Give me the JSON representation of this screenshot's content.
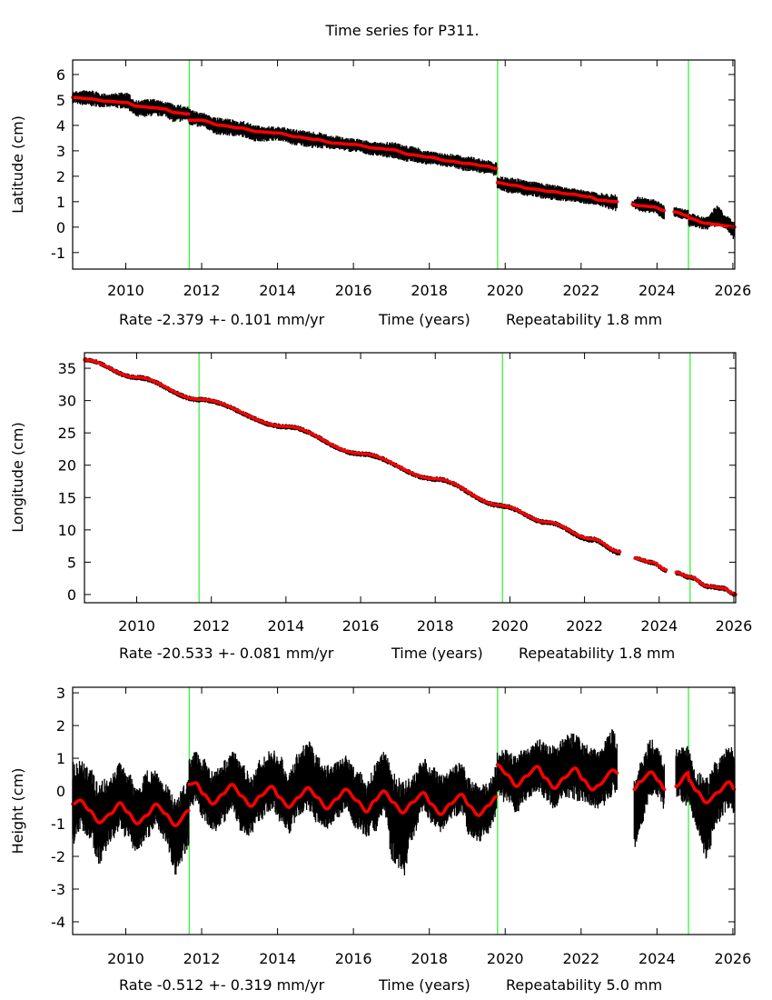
{
  "chart_data": {
    "type": "scatter",
    "title": "Time series for P311.",
    "xlim": [
      2008.6,
      2026.05
    ],
    "xticks": [
      2010,
      2012,
      2014,
      2016,
      2018,
      2020,
      2022,
      2024,
      2026
    ],
    "event_lines": [
      2011.67,
      2019.8,
      2024.83
    ],
    "colors": {
      "data": "#000000",
      "model": "#ff0000",
      "event_line": "#00ee00",
      "frame": "#000000"
    },
    "panels": [
      {
        "ylabel": "Latitude (cm)",
        "ylim": [
          -1.65,
          6.57
        ],
        "yticks": [
          -1,
          0,
          1,
          2,
          3,
          4,
          5,
          6
        ],
        "caption": {
          "rate": "Rate -2.379 +- 0.101 mm/yr",
          "xlabel": "Time (years)",
          "repeatability": "Repeatability 1.8 mm"
        },
        "series_columns": [
          "year",
          "model",
          "data_low",
          "data_high"
        ],
        "segments": [
          [
            [
              2008.6,
              5.1,
              4.85,
              5.35
            ],
            [
              2009.0,
              5.05,
              4.75,
              5.4
            ],
            [
              2009.5,
              4.95,
              4.7,
              5.25
            ],
            [
              2010.0,
              4.9,
              4.65,
              5.3
            ],
            [
              2010.3,
              4.75,
              4.3,
              5.0
            ],
            [
              2010.7,
              4.7,
              4.35,
              5.05
            ],
            [
              2011.0,
              4.65,
              4.35,
              4.95
            ],
            [
              2011.3,
              4.5,
              4.1,
              4.85
            ],
            [
              2011.66,
              4.45,
              4.2,
              4.75
            ]
          ],
          [
            [
              2011.67,
              4.2,
              4.0,
              4.65
            ],
            [
              2012.0,
              4.2,
              3.9,
              4.5
            ],
            [
              2012.5,
              4.0,
              3.6,
              4.3
            ],
            [
              2013.0,
              3.9,
              3.55,
              4.2
            ],
            [
              2013.5,
              3.75,
              3.35,
              4.0
            ],
            [
              2014.0,
              3.7,
              3.4,
              3.95
            ],
            [
              2014.5,
              3.55,
              3.2,
              3.85
            ],
            [
              2015.0,
              3.45,
              3.1,
              3.75
            ],
            [
              2015.5,
              3.3,
              3.05,
              3.6
            ],
            [
              2016.0,
              3.25,
              2.95,
              3.5
            ],
            [
              2016.6,
              3.1,
              2.8,
              3.35
            ],
            [
              2017.0,
              3.05,
              2.7,
              3.35
            ],
            [
              2017.5,
              2.85,
              2.55,
              3.2
            ],
            [
              2018.0,
              2.75,
              2.45,
              3.0
            ],
            [
              2018.5,
              2.6,
              2.35,
              2.9
            ],
            [
              2019.0,
              2.5,
              2.2,
              2.8
            ],
            [
              2019.5,
              2.4,
              2.1,
              2.65
            ],
            [
              2019.77,
              2.3,
              2.0,
              2.55
            ]
          ],
          [
            [
              2019.79,
              1.75,
              1.45,
              2.0
            ],
            [
              2020.2,
              1.65,
              1.3,
              1.95
            ],
            [
              2020.7,
              1.5,
              1.2,
              1.8
            ],
            [
              2021.2,
              1.4,
              1.05,
              1.7
            ],
            [
              2021.7,
              1.3,
              1.0,
              1.55
            ],
            [
              2022.2,
              1.2,
              0.9,
              1.45
            ],
            [
              2022.5,
              1.05,
              0.8,
              1.35
            ],
            [
              2022.95,
              1.0,
              0.6,
              1.3
            ]
          ],
          [
            [
              2023.35,
              0.9,
              0.8,
              1.05
            ],
            [
              2023.5,
              0.85,
              0.6,
              1.2
            ],
            [
              2023.9,
              0.8,
              0.55,
              1.1
            ],
            [
              2024.2,
              0.65,
              0.3,
              0.9
            ]
          ],
          [
            [
              2024.45,
              0.6,
              0.4,
              0.8
            ],
            [
              2024.82,
              0.45,
              0.25,
              0.7
            ],
            [
              2024.84,
              0.35,
              0.0,
              0.55
            ],
            [
              2025.3,
              0.15,
              -0.1,
              0.4
            ],
            [
              2025.6,
              0.1,
              0.0,
              0.85
            ],
            [
              2025.8,
              0.05,
              -0.1,
              0.5
            ],
            [
              2026.05,
              0.0,
              -0.5,
              0.2
            ]
          ]
        ]
      },
      {
        "ylabel": "Longitude (cm)",
        "ylim": [
          -1.27,
          37.4
        ],
        "yticks": [
          0,
          5,
          10,
          15,
          20,
          25,
          30,
          35
        ],
        "caption": {
          "rate": "Rate -20.533 +- 0.081 mm/yr",
          "xlabel": "Time (years)",
          "repeatability": "Repeatability 1.8 mm"
        },
        "series_columns": [
          "year",
          "model",
          "data_low",
          "data_high"
        ],
        "segments": [
          [
            [
              2008.6,
              36.3,
              35.9,
              36.7
            ],
            [
              2010.0,
              33.6,
              33.1,
              34.0
            ],
            [
              2011.66,
              30.2,
              29.7,
              30.6
            ]
          ],
          [
            [
              2011.67,
              30.2,
              29.7,
              30.6
            ],
            [
              2014.0,
              26.0,
              25.5,
              26.4
            ],
            [
              2016.0,
              21.8,
              21.3,
              22.2
            ],
            [
              2018.0,
              17.9,
              17.4,
              18.3
            ],
            [
              2019.77,
              13.8,
              13.3,
              14.2
            ]
          ],
          [
            [
              2019.79,
              13.7,
              13.2,
              14.1
            ],
            [
              2021.0,
              11.2,
              10.7,
              11.6
            ],
            [
              2022.2,
              8.6,
              8.0,
              9.0
            ],
            [
              2022.95,
              6.6,
              6.0,
              7.0
            ]
          ],
          [
            [
              2023.35,
              5.6,
              5.2,
              6.0
            ],
            [
              2023.8,
              5.0,
              4.5,
              5.4
            ],
            [
              2024.2,
              3.8,
              3.3,
              4.2
            ]
          ],
          [
            [
              2024.45,
              3.4,
              2.9,
              3.8
            ],
            [
              2024.84,
              2.7,
              2.2,
              3.1
            ],
            [
              2025.3,
              1.3,
              0.8,
              1.7
            ],
            [
              2025.7,
              1.0,
              0.5,
              1.4
            ],
            [
              2026.05,
              0.0,
              -0.4,
              0.4
            ]
          ]
        ]
      },
      {
        "ylabel": "Height (cm)",
        "ylim": [
          -4.39,
          3.17
        ],
        "yticks": [
          -4,
          -3,
          -2,
          -1,
          0,
          1,
          2,
          3
        ],
        "caption": {
          "rate": "Rate -0.512 +- 0.319 mm/yr",
          "xlabel": "Time (years)",
          "repeatability": "Repeatability 5.0 mm"
        },
        "series_columns": [
          "year",
          "model",
          "data_low",
          "data_high"
        ],
        "segments": [
          [
            [
              2008.6,
              -0.4,
              -1.7,
              0.9
            ],
            [
              2008.8,
              -0.28,
              -1.2,
              1.0
            ],
            [
              2009.05,
              -0.6,
              -1.5,
              0.7
            ],
            [
              2009.3,
              -0.97,
              -2.3,
              0.3
            ],
            [
              2009.6,
              -0.7,
              -1.6,
              0.5
            ],
            [
              2009.85,
              -0.36,
              -1.2,
              0.9
            ],
            [
              2010.05,
              -0.65,
              -1.6,
              0.6
            ],
            [
              2010.3,
              -1.0,
              -1.9,
              0.1
            ],
            [
              2010.55,
              -0.75,
              -1.5,
              0.7
            ],
            [
              2010.8,
              -0.4,
              -1.1,
              0.7
            ],
            [
              2011.05,
              -0.7,
              -1.6,
              0.2
            ],
            [
              2011.3,
              -1.06,
              -2.6,
              -0.2
            ],
            [
              2011.66,
              -0.6,
              -1.8,
              0.4
            ]
          ],
          [
            [
              2011.67,
              0.2,
              -0.6,
              1.1
            ],
            [
              2011.85,
              0.25,
              -0.4,
              1.2
            ],
            [
              2012.05,
              -0.1,
              -0.9,
              1.0
            ],
            [
              2012.3,
              -0.4,
              -1.3,
              0.6
            ],
            [
              2012.55,
              -0.1,
              -1.0,
              0.9
            ],
            [
              2012.8,
              0.2,
              -0.6,
              1.3
            ],
            [
              2013.05,
              -0.15,
              -1.3,
              0.9
            ],
            [
              2013.3,
              -0.47,
              -1.4,
              0.5
            ],
            [
              2013.55,
              -0.15,
              -0.9,
              1.0
            ],
            [
              2013.85,
              0.14,
              -0.6,
              1.3
            ],
            [
              2014.05,
              -0.2,
              -1.0,
              1.1
            ],
            [
              2014.3,
              -0.5,
              -1.3,
              0.6
            ],
            [
              2014.55,
              -0.2,
              -0.8,
              1.2
            ],
            [
              2014.8,
              0.1,
              -0.6,
              1.6
            ],
            [
              2015.05,
              -0.2,
              -1.0,
              1.1
            ],
            [
              2015.3,
              -0.55,
              -1.2,
              0.8
            ],
            [
              2015.55,
              -0.25,
              -0.9,
              0.9
            ],
            [
              2015.8,
              0.05,
              -0.6,
              1.1
            ],
            [
              2016.1,
              -0.3,
              -1.2,
              0.7
            ],
            [
              2016.35,
              -0.64,
              -1.4,
              0.3
            ],
            [
              2016.55,
              -0.3,
              -1.3,
              0.8
            ],
            [
              2016.8,
              0.0,
              -0.7,
              1.3
            ],
            [
              2017.05,
              -0.35,
              -2.2,
              0.6
            ],
            [
              2017.3,
              -0.67,
              -2.7,
              0.3
            ],
            [
              2017.55,
              -0.35,
              -1.5,
              0.5
            ],
            [
              2017.85,
              -0.05,
              -0.6,
              1.0
            ],
            [
              2018.05,
              -0.4,
              -1.0,
              0.8
            ],
            [
              2018.3,
              -0.72,
              -1.3,
              0.5
            ],
            [
              2018.55,
              -0.4,
              -0.9,
              0.8
            ],
            [
              2018.85,
              -0.1,
              -0.7,
              0.9
            ],
            [
              2019.05,
              -0.45,
              -1.4,
              0.4
            ],
            [
              2019.3,
              -0.75,
              -1.6,
              0.2
            ],
            [
              2019.55,
              -0.45,
              -1.3,
              0.3
            ],
            [
              2019.77,
              -0.17,
              -0.8,
              0.8
            ]
          ],
          [
            [
              2019.79,
              0.8,
              -0.2,
              1.2
            ],
            [
              2020.05,
              0.5,
              -0.4,
              1.3
            ],
            [
              2020.3,
              0.14,
              -0.7,
              1.1
            ],
            [
              2020.55,
              0.45,
              -0.3,
              1.4
            ],
            [
              2020.85,
              0.75,
              0.0,
              1.6
            ],
            [
              2021.05,
              0.4,
              -0.3,
              1.5
            ],
            [
              2021.3,
              0.08,
              -0.6,
              1.4
            ],
            [
              2021.55,
              0.4,
              -0.2,
              1.7
            ],
            [
              2021.85,
              0.7,
              -0.3,
              1.8
            ],
            [
              2022.05,
              0.35,
              -0.4,
              1.5
            ],
            [
              2022.3,
              0.03,
              -0.5,
              1.3
            ],
            [
              2022.45,
              0.17,
              -0.6,
              1.3
            ],
            [
              2022.85,
              0.64,
              -0.2,
              1.9
            ],
            [
              2022.95,
              0.55,
              -0.1,
              1.5
            ]
          ],
          [
            [
              2023.4,
              0.05,
              -1.8,
              0.3
            ],
            [
              2023.55,
              0.28,
              -1.2,
              0.9
            ],
            [
              2023.85,
              0.58,
              -0.2,
              1.6
            ],
            [
              2024.05,
              0.3,
              -0.2,
              1.3
            ],
            [
              2024.2,
              0.05,
              -0.6,
              0.9
            ]
          ],
          [
            [
              2024.5,
              0.14,
              -0.2,
              1.3
            ],
            [
              2024.83,
              0.56,
              -0.5,
              1.4
            ],
            [
              2024.84,
              0.33,
              -0.5,
              1.2
            ],
            [
              2025.05,
              0.0,
              -1.2,
              0.6
            ],
            [
              2025.3,
              -0.36,
              -2.1,
              0.4
            ],
            [
              2025.6,
              -0.05,
              -1.0,
              1.0
            ],
            [
              2025.9,
              0.28,
              -0.6,
              1.4
            ],
            [
              2026.05,
              0.05,
              -0.7,
              1.3
            ]
          ]
        ]
      }
    ]
  }
}
